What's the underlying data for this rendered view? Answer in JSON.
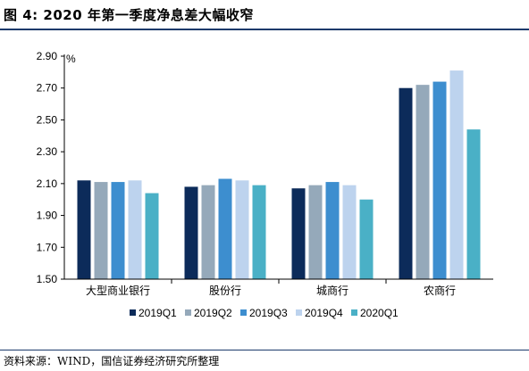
{
  "figure_title": "图 4:  2020 年第一季度净息差大幅收窄",
  "source": "资料来源：WIND，国信证券经济研究所整理",
  "chart_data": {
    "type": "bar",
    "title": "图 4:  2020 年第一季度净息差大幅收窄",
    "unit": "%",
    "categories": [
      "大型商业银行",
      "股份行",
      "城商行",
      "农商行"
    ],
    "series": [
      {
        "name": "2019Q1",
        "color": "#0c2b5a",
        "values": [
          2.12,
          2.08,
          2.07,
          2.7
        ]
      },
      {
        "name": "2019Q2",
        "color": "#95a9ba",
        "values": [
          2.11,
          2.09,
          2.09,
          2.72
        ]
      },
      {
        "name": "2019Q3",
        "color": "#3d8ecf",
        "values": [
          2.11,
          2.13,
          2.11,
          2.74
        ]
      },
      {
        "name": "2019Q4",
        "color": "#bdd3ee",
        "values": [
          2.12,
          2.12,
          2.09,
          2.81
        ]
      },
      {
        "name": "2020Q1",
        "color": "#4ab0c6",
        "values": [
          2.04,
          2.09,
          2.0,
          2.44
        ]
      }
    ],
    "ylim": [
      1.5,
      2.9
    ],
    "yticks": [
      "1.50",
      "1.70",
      "1.90",
      "2.10",
      "2.30",
      "2.50",
      "2.70",
      "2.90"
    ],
    "legend_position": "bottom",
    "grid": false
  }
}
